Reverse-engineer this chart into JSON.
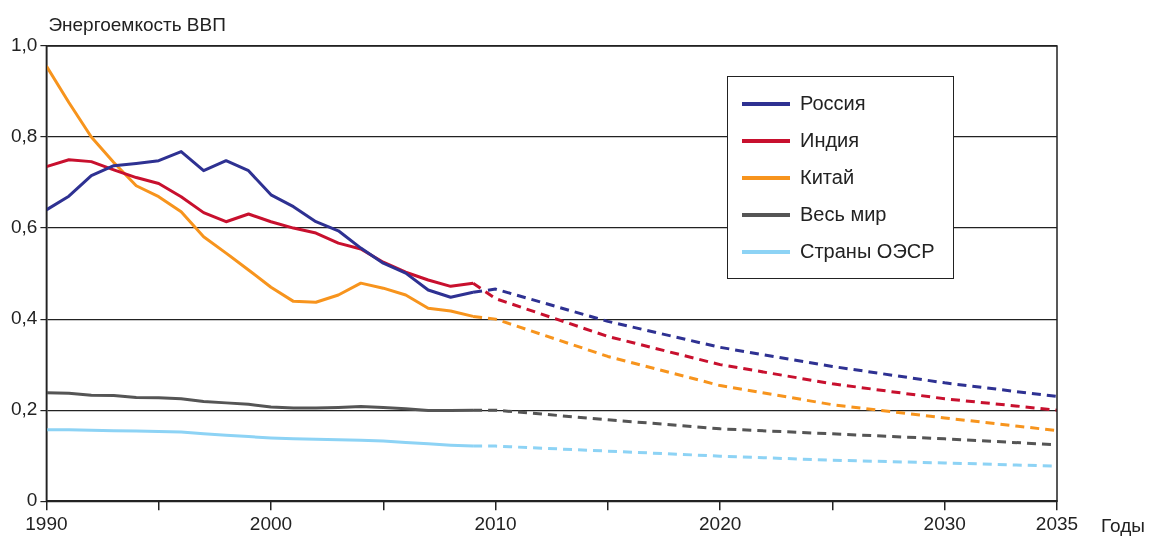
{
  "chart_data": {
    "type": "line",
    "ylabel": "Энергоемкость ВВП",
    "xlabel": "Годы",
    "xlim": [
      1990,
      2035
    ],
    "xticks": [
      1990,
      {
        "value": 1995,
        "label": null
      },
      2000,
      {
        "value": 2005,
        "label": null
      },
      2010,
      {
        "value": 2015,
        "label": null
      },
      2020,
      {
        "value": 2025,
        "label": null
      },
      2030,
      2035
    ],
    "ylim": [
      0,
      1
    ],
    "yticks": [
      {
        "value": 0,
        "label": "0"
      },
      {
        "value": 0.2,
        "label": "0,2"
      },
      {
        "value": 0.4,
        "label": "0,4"
      },
      {
        "value": 0.6,
        "label": "0,6"
      },
      {
        "value": 0.8,
        "label": "0,8"
      },
      {
        "value": 1,
        "label": "1,0"
      }
    ],
    "grid": "y",
    "legend": "top right",
    "marker": "none",
    "series": [
      {
        "name": "Россия",
        "color": "#2e3192",
        "line_style": "solid",
        "x": [
          1990,
          1991,
          1992,
          1993,
          1994,
          1995,
          1996,
          1997,
          1998,
          1999,
          2000,
          2001,
          2002,
          2003,
          2004,
          2005,
          2006,
          2007,
          2008,
          2009
        ],
        "values": [
          0.64,
          0.67,
          0.715,
          0.737,
          0.742,
          0.748,
          0.768,
          0.726,
          0.748,
          0.726,
          0.673,
          0.647,
          0.614,
          0.594,
          0.556,
          0.523,
          0.501,
          0.464,
          0.448,
          0.459
        ]
      },
      {
        "name": "Индия",
        "color": "#c8102e",
        "line_style": "solid",
        "x": [
          1990,
          1991,
          1992,
          1993,
          1994,
          1995,
          1996,
          1997,
          1998,
          1999,
          2000,
          2001,
          2002,
          2003,
          2004,
          2005,
          2006,
          2007,
          2008,
          2009
        ],
        "values": [
          0.735,
          0.75,
          0.746,
          0.728,
          0.711,
          0.698,
          0.669,
          0.634,
          0.614,
          0.631,
          0.614,
          0.6,
          0.589,
          0.567,
          0.554,
          0.525,
          0.503,
          0.486,
          0.472,
          0.479
        ]
      },
      {
        "name": "Китай",
        "color": "#f7941d",
        "line_style": "solid",
        "x": [
          1990,
          1991,
          1992,
          1993,
          1994,
          1995,
          1996,
          1997,
          1998,
          1999,
          2000,
          2001,
          2002,
          2003,
          2004,
          2005,
          2006,
          2007,
          2008,
          2009
        ],
        "values": [
          0.956,
          0.876,
          0.8,
          0.744,
          0.693,
          0.669,
          0.636,
          0.581,
          0.545,
          0.508,
          0.47,
          0.439,
          0.437,
          0.453,
          0.479,
          0.468,
          0.453,
          0.424,
          0.418,
          0.406
        ]
      },
      {
        "name": "Весь мир",
        "color": "#555555",
        "line_style": "solid",
        "x": [
          1990,
          1991,
          1992,
          1993,
          1994,
          1995,
          1996,
          1997,
          1998,
          1999,
          2000,
          2001,
          2002,
          2003,
          2004,
          2005,
          2006,
          2007,
          2008,
          2009
        ],
        "values": [
          0.238,
          0.237,
          0.233,
          0.232,
          0.228,
          0.227,
          0.225,
          0.219,
          0.216,
          0.213,
          0.207,
          0.205,
          0.205,
          0.206,
          0.208,
          0.206,
          0.203,
          0.199,
          0.199,
          0.2
        ]
      },
      {
        "name": "Страны ОЭСР",
        "color": "#8dd3f5",
        "line_style": "solid",
        "x": [
          1990,
          1991,
          1992,
          1993,
          1994,
          1995,
          1996,
          1997,
          1998,
          1999,
          2000,
          2001,
          2002,
          2003,
          2004,
          2005,
          2006,
          2007,
          2008,
          2009
        ],
        "values": [
          0.157,
          0.157,
          0.156,
          0.155,
          0.154,
          0.153,
          0.152,
          0.148,
          0.145,
          0.142,
          0.139,
          0.137,
          0.136,
          0.135,
          0.134,
          0.132,
          0.129,
          0.126,
          0.123,
          0.121
        ]
      },
      {
        "color": "#2e3192",
        "line_style": "dashed",
        "x": [
          2009,
          2010,
          2015,
          2020,
          2025,
          2030,
          2035
        ],
        "values": [
          0.459,
          0.466,
          0.395,
          0.338,
          0.296,
          0.26,
          0.23
        ]
      },
      {
        "color": "#c8102e",
        "line_style": "dashed",
        "x": [
          2009,
          2010,
          2015,
          2020,
          2025,
          2030,
          2035
        ],
        "values": [
          0.479,
          0.445,
          0.362,
          0.3,
          0.258,
          0.225,
          0.2
        ]
      },
      {
        "color": "#f7941d",
        "line_style": "dashed",
        "x": [
          2009,
          2010,
          2015,
          2020,
          2025,
          2030,
          2035
        ],
        "values": [
          0.406,
          0.4,
          0.318,
          0.254,
          0.212,
          0.183,
          0.155
        ]
      },
      {
        "color": "#555555",
        "line_style": "dashed",
        "x": [
          2009,
          2010,
          2015,
          2020,
          2025,
          2030,
          2035
        ],
        "values": [
          0.2,
          0.2,
          0.179,
          0.159,
          0.148,
          0.137,
          0.124
        ]
      },
      {
        "color": "#8dd3f5",
        "line_style": "dashed",
        "x": [
          2009,
          2010,
          2015,
          2020,
          2025,
          2030,
          2035
        ],
        "values": [
          0.121,
          0.121,
          0.11,
          0.099,
          0.09,
          0.084,
          0.077
        ]
      }
    ]
  }
}
